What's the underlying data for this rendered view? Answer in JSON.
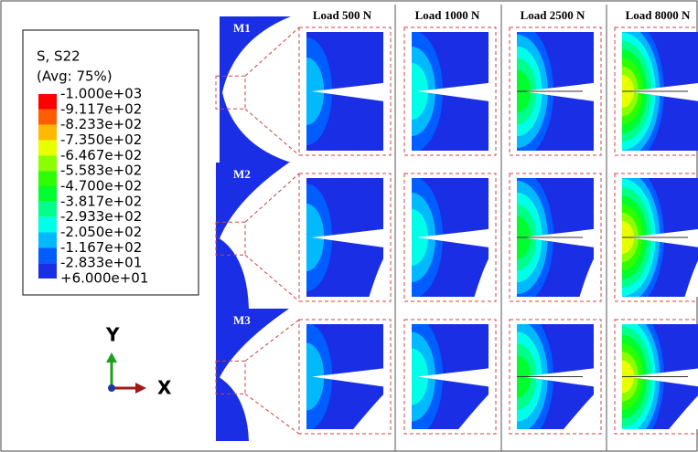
{
  "legend": {
    "title": "S, S22",
    "subtitle": "(Avg: 75%)",
    "labels": [
      "-1.000e+03",
      "-9.117e+02",
      "-8.233e+02",
      "-7.350e+02",
      "-6.467e+02",
      "-5.583e+02",
      "-4.700e+02",
      "-3.817e+02",
      "-2.933e+02",
      "-2.050e+02",
      "-1.167e+02",
      "-2.833e+01",
      "+6.000e+01"
    ]
  },
  "axes": {
    "y": "Y",
    "x": "X"
  },
  "columns": [
    "Load 500 N",
    "Load 1000 N",
    "Load 2500 N",
    "Load 8000 N"
  ],
  "rows": [
    "M1",
    "M2",
    "M3"
  ]
}
